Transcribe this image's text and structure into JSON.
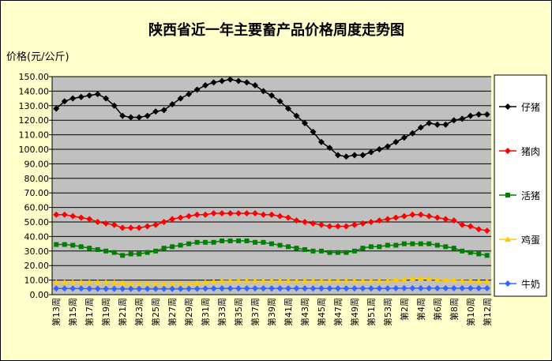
{
  "chart_data": {
    "type": "line",
    "title": "陕西省近一年主要畜产品价格周度走势图",
    "y_label": "价格(元/公斤)",
    "categories": [
      "第13周",
      null,
      "第15周",
      null,
      "第17周",
      null,
      "第19周",
      null,
      "第21周",
      null,
      "第23周",
      null,
      "第25周",
      null,
      "第27周",
      null,
      "第29周",
      null,
      "第31周",
      null,
      "第33周",
      null,
      "第35周",
      null,
      "第37周",
      null,
      "第39周",
      null,
      "第41周",
      null,
      "第43周",
      null,
      "第45周",
      null,
      "第47周",
      null,
      "第49周",
      null,
      "第51周",
      null,
      "第53周",
      null,
      "第2周",
      null,
      "第4周",
      null,
      "第6周",
      null,
      "第8周",
      null,
      "第10周",
      null,
      "第12周"
    ],
    "series": [
      {
        "name": "仔猪",
        "color": "#000000",
        "marker": "diamond",
        "values": [
          128,
          133,
          135,
          136,
          137,
          138,
          135,
          130,
          123,
          122,
          122,
          123,
          126,
          127,
          131,
          135,
          138,
          141,
          144,
          146,
          147,
          148,
          147,
          146,
          144,
          140,
          137,
          133,
          128,
          123,
          118,
          112,
          105,
          101,
          96,
          95,
          96,
          96,
          98,
          100,
          102,
          105,
          108,
          111,
          115,
          118,
          117,
          117,
          120,
          121,
          123,
          124,
          124
        ]
      },
      {
        "name": "猪肉",
        "color": "#ff0000",
        "marker": "diamond",
        "values": [
          55,
          55,
          54,
          53,
          52,
          50,
          49,
          48,
          46,
          46,
          46,
          47,
          48,
          50,
          52,
          53,
          54,
          55,
          55,
          56,
          56,
          56,
          56,
          56,
          56,
          55,
          55,
          54,
          53,
          51,
          50,
          49,
          48,
          47,
          47,
          47,
          48,
          49,
          50,
          51,
          52,
          53,
          54,
          55,
          55,
          54,
          53,
          52,
          51,
          48,
          47,
          45,
          44
        ]
      },
      {
        "name": "活猪",
        "color": "#008000",
        "marker": "square",
        "values": [
          34.5,
          34.5,
          34,
          33,
          32,
          31,
          30,
          29,
          27,
          28,
          28,
          29,
          30,
          32,
          33,
          34,
          35,
          36,
          36,
          36,
          37,
          37,
          37,
          37,
          36,
          36,
          35,
          34,
          33,
          32,
          31,
          30,
          30,
          29,
          29,
          29,
          30,
          32,
          33,
          33,
          34,
          34,
          35,
          35,
          35,
          35,
          34,
          33,
          32,
          30,
          29,
          28,
          27
        ]
      },
      {
        "name": "鸡蛋",
        "color": "#ffcc00",
        "marker": "triangle",
        "values": [
          8.5,
          8.5,
          8.5,
          8.5,
          8.5,
          8.5,
          8.5,
          8.3,
          8,
          7.5,
          7.5,
          7.5,
          7.5,
          7.5,
          7.5,
          7.5,
          7.5,
          8,
          8.5,
          9,
          9.5,
          9.5,
          9.5,
          9.5,
          9.5,
          9.5,
          9.5,
          9.5,
          9.5,
          9.5,
          9.5,
          9.5,
          9.5,
          9.5,
          9.5,
          9.5,
          9.5,
          9.5,
          9.5,
          9.5,
          9.5,
          10,
          10.5,
          11,
          11,
          10.8,
          10.5,
          10,
          9.8,
          9.5,
          9.5,
          9.3,
          9.3
        ]
      },
      {
        "name": "牛奶",
        "color": "#3366ff",
        "marker": "diamond",
        "values": [
          4.2,
          4.2,
          4.2,
          4.2,
          4.1,
          4.1,
          4,
          4,
          4,
          4,
          4,
          4,
          4,
          4,
          4,
          4,
          4.1,
          4.1,
          4.2,
          4.2,
          4.3,
          4.3,
          4.3,
          4.3,
          4.3,
          4.3,
          4.3,
          4.3,
          4.3,
          4.3,
          4.3,
          4.3,
          4.3,
          4.3,
          4.3,
          4.3,
          4.3,
          4.3,
          4.3,
          4.3,
          4.3,
          4.4,
          4.4,
          4.4,
          4.4,
          4.4,
          4.4,
          4.4,
          4.4,
          4.4,
          4.4,
          4.4,
          4.4
        ]
      }
    ],
    "ylim": [
      0,
      150
    ],
    "yticks": [
      {
        "value": 0,
        "label": "0.00"
      },
      {
        "value": 10,
        "label": "10.00"
      },
      {
        "value": 20,
        "label": "20.00"
      },
      {
        "value": 30,
        "label": "30.00"
      },
      {
        "value": 40,
        "label": "40.00"
      },
      {
        "value": 50,
        "label": "50.00"
      },
      {
        "value": 60,
        "label": "60.00"
      },
      {
        "value": 70,
        "label": "70.00"
      },
      {
        "value": 80,
        "label": "80.00"
      },
      {
        "value": 90,
        "label": "90.00"
      },
      {
        "value": 100,
        "label": "100.00"
      },
      {
        "value": 110,
        "label": "110.00"
      },
      {
        "value": 120,
        "label": "120.00"
      },
      {
        "value": 130,
        "label": "130.00"
      },
      {
        "value": 140,
        "label": "140.00"
      },
      {
        "value": 150,
        "label": "150.00"
      }
    ],
    "grid": true,
    "legend": "right"
  }
}
